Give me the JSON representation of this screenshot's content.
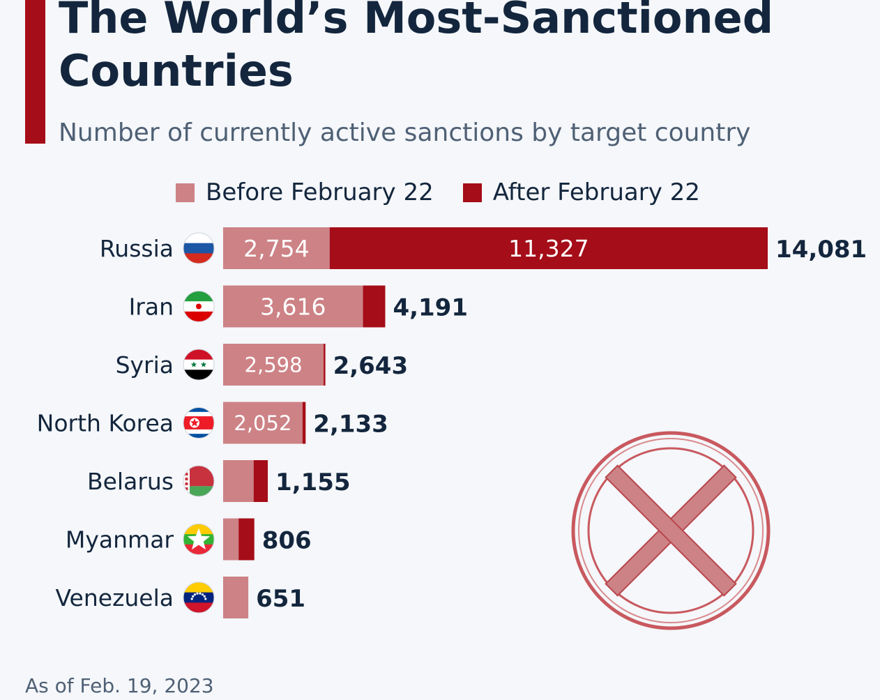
{
  "title": "The World’s Most-Sanctioned Countries",
  "subtitle": "Number of currently active sanctions by target country",
  "footnote": "As of Feb. 19, 2023",
  "colors": {
    "before": "#cd8286",
    "after": "#a50d18",
    "text": "#13263d",
    "label_text": "#ffffff"
  },
  "icons": {
    "decoration": "prohibited-x-icon"
  },
  "chart_data": {
    "type": "bar",
    "orientation": "horizontal",
    "stacked": true,
    "title": "The World’s Most-Sanctioned Countries",
    "subtitle": "Number of currently active sanctions by target country",
    "legend_position": "top",
    "grid": false,
    "xlim": [
      0,
      14081
    ],
    "categories": [
      "Russia",
      "Iran",
      "Syria",
      "North Korea",
      "Belarus",
      "Myanmar",
      "Venezuela"
    ],
    "flags": [
      "russia-flag-icon",
      "iran-flag-icon",
      "syria-flag-icon",
      "north-korea-flag-icon",
      "belarus-flag-icon",
      "myanmar-flag-icon",
      "venezuela-flag-icon"
    ],
    "series": [
      {
        "name": "Before February 22",
        "values": [
          2754,
          3616,
          2598,
          2052,
          788,
          400,
          651
        ],
        "labels": [
          "2,754",
          "3,616",
          "2,598",
          "2,052",
          "",
          "",
          ""
        ]
      },
      {
        "name": "After February 22",
        "values": [
          11327,
          575,
          45,
          81,
          367,
          406,
          0
        ],
        "labels": [
          "11,327",
          "",
          "",
          "",
          "",
          "",
          ""
        ]
      }
    ],
    "totals": [
      14081,
      4191,
      2643,
      2133,
      1155,
      806,
      651
    ],
    "total_labels": [
      "14,081",
      "4,191",
      "2,643",
      "2,133",
      "1,155",
      "806",
      "651"
    ]
  }
}
